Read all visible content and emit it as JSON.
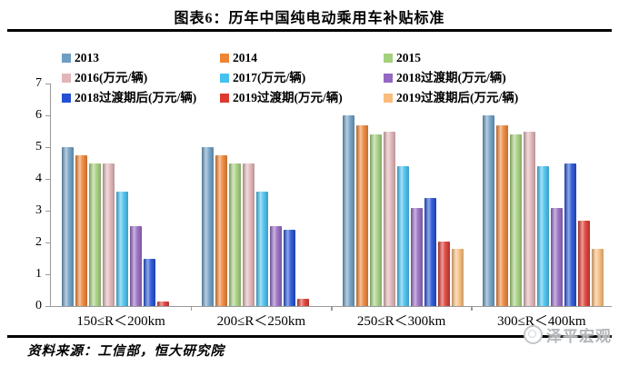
{
  "header": {
    "title": "图表6：历年中国纯电动乘用车补贴标准"
  },
  "footer": {
    "source": "资料来源：工信部，恒大研究院",
    "logo_text": "泽平宏观"
  },
  "colors": {
    "axis": "#9a9a9a",
    "rule": "#000000",
    "logo": "#b3b7bb"
  },
  "chart_data": {
    "type": "bar",
    "title": "历年中国纯电动乘用车补贴标准",
    "unit": "万元/辆",
    "categories": [
      "150≤R＜200km",
      "200≤R＜250km",
      "250≤R＜300km",
      "300≤R＜400km"
    ],
    "series": [
      {
        "name": "2013",
        "color": "#6D9EC4",
        "values": [
          5.0,
          5.0,
          6.0,
          6.0
        ]
      },
      {
        "name": "2014",
        "color": "#EF8435",
        "values": [
          4.75,
          4.75,
          5.7,
          5.7
        ]
      },
      {
        "name": "2015",
        "color": "#A5D07E",
        "values": [
          4.5,
          4.5,
          5.4,
          5.4
        ]
      },
      {
        "name": "2016(万元/辆)",
        "color": "#E2B6B8",
        "values": [
          4.5,
          4.5,
          5.5,
          5.5
        ]
      },
      {
        "name": "2017(万元/辆)",
        "color": "#45C1F0",
        "values": [
          3.6,
          3.6,
          4.4,
          4.4
        ]
      },
      {
        "name": "2018过渡期(万元/辆)",
        "color": "#9568C2",
        "values": [
          2.52,
          2.52,
          3.08,
          3.08
        ]
      },
      {
        "name": "2018过渡期后(万元/辆)",
        "color": "#2251D5",
        "values": [
          1.5,
          2.4,
          3.4,
          4.5
        ]
      },
      {
        "name": "2019过渡期(万元/辆)",
        "color": "#DC3A30",
        "values": [
          0.15,
          0.24,
          2.04,
          2.7
        ]
      },
      {
        "name": "2019过渡期后(万元/辆)",
        "color": "#F9BD7C",
        "values": [
          0,
          0,
          1.8,
          1.8
        ]
      }
    ],
    "ylim": [
      0,
      7
    ],
    "ytick_step": 1,
    "grid": false,
    "legend_position": "top"
  }
}
